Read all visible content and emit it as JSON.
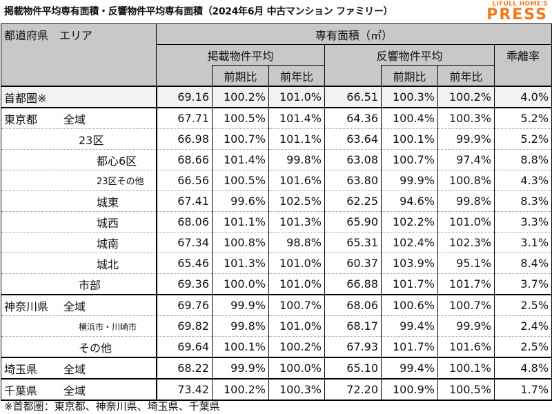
{
  "title": "掲載物件平均専有面積・反響物件平均専有面積（2024年6月 中古マンション ファミリー）",
  "logo": {
    "small": "LIFULL HOME'S",
    "big": "PRESS",
    "color": "#f07a1a"
  },
  "header": {
    "corner": "都道府県　エリア",
    "area_title": "専有面積（㎡）",
    "listed": "掲載物件平均",
    "response": "反響物件平均",
    "gap": "乖離率",
    "qoq": "前期比",
    "yoy": "前年比"
  },
  "rows": [
    {
      "pref": "首都圏※",
      "area": "",
      "values": [
        "69.16",
        "100.2%",
        "101.0%",
        "66.51",
        "100.3%",
        "100.2%",
        "4.0%"
      ]
    },
    {
      "pref": "東京都",
      "area": "全域",
      "values": [
        "67.71",
        "100.5%",
        "101.4%",
        "64.36",
        "100.4%",
        "100.3%",
        "5.2%"
      ]
    },
    {
      "pref": "",
      "area": "23区",
      "values": [
        "66.98",
        "100.7%",
        "101.1%",
        "63.64",
        "100.1%",
        "99.9%",
        "5.2%"
      ]
    },
    {
      "pref": "",
      "area": "都心6区",
      "values": [
        "68.66",
        "101.4%",
        "99.8%",
        "63.08",
        "100.7%",
        "97.4%",
        "8.8%"
      ]
    },
    {
      "pref": "",
      "area": "23区その他",
      "values": [
        "66.56",
        "100.5%",
        "101.6%",
        "63.80",
        "99.9%",
        "100.8%",
        "4.3%"
      ]
    },
    {
      "pref": "",
      "area": "城東",
      "values": [
        "67.41",
        "99.6%",
        "102.5%",
        "62.25",
        "94.6%",
        "99.8%",
        "8.3%"
      ]
    },
    {
      "pref": "",
      "area": "城西",
      "values": [
        "68.06",
        "101.1%",
        "101.3%",
        "65.90",
        "102.2%",
        "101.0%",
        "3.3%"
      ]
    },
    {
      "pref": "",
      "area": "城南",
      "values": [
        "67.34",
        "100.8%",
        "98.8%",
        "65.31",
        "102.4%",
        "102.3%",
        "3.1%"
      ]
    },
    {
      "pref": "",
      "area": "城北",
      "values": [
        "65.46",
        "101.3%",
        "101.0%",
        "60.37",
        "103.9%",
        "95.1%",
        "8.4%"
      ]
    },
    {
      "pref": "",
      "area": "市部",
      "values": [
        "69.36",
        "100.0%",
        "101.0%",
        "66.88",
        "101.7%",
        "101.7%",
        "3.7%"
      ]
    },
    {
      "pref": "神奈川県",
      "area": "全域",
      "values": [
        "69.76",
        "99.9%",
        "100.7%",
        "68.06",
        "100.6%",
        "100.7%",
        "2.5%"
      ]
    },
    {
      "pref": "",
      "area": "横浜市・川崎市",
      "values": [
        "69.82",
        "99.8%",
        "101.0%",
        "68.17",
        "99.4%",
        "99.9%",
        "2.4%"
      ]
    },
    {
      "pref": "",
      "area": "その他",
      "values": [
        "69.64",
        "100.1%",
        "100.2%",
        "67.93",
        "101.7%",
        "101.6%",
        "2.5%"
      ]
    },
    {
      "pref": "埼玉県",
      "area": "全域",
      "values": [
        "68.22",
        "99.9%",
        "100.0%",
        "65.10",
        "99.4%",
        "100.1%",
        "4.8%"
      ]
    },
    {
      "pref": "千葉県",
      "area": "全域",
      "values": [
        "73.42",
        "100.2%",
        "100.3%",
        "72.20",
        "100.9%",
        "100.5%",
        "1.7%"
      ]
    }
  ],
  "footnote": "※首都圏：東京都、神奈川県、埼玉県、千葉県"
}
